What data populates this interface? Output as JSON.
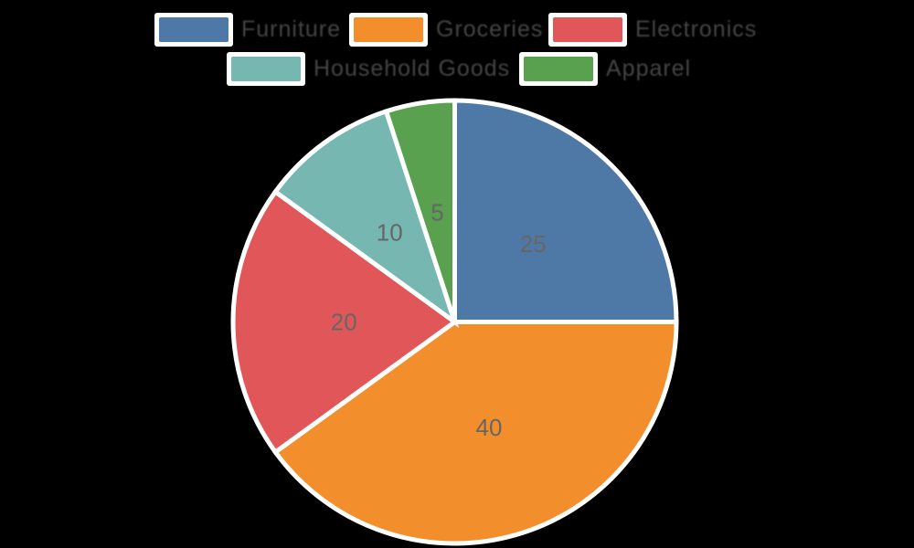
{
  "background_color": "#000000",
  "chart_data": {
    "type": "pie",
    "labels": [
      "Furniture",
      "Groceries",
      "Electronics",
      "Household Goods",
      "Apparel"
    ],
    "values": [
      25,
      40,
      20,
      10,
      5
    ],
    "value_labels": [
      "25",
      "40",
      "20",
      "10",
      "5"
    ],
    "colors": [
      "#4e79a7",
      "#f28e2b",
      "#e15759",
      "#76b7b2",
      "#59a14f"
    ],
    "start_angle": "top",
    "direction": "clockwise",
    "slice_border_color": "#ffffff",
    "value_label_color": "#666666",
    "legend_position": "top-center",
    "legend_rows": 2,
    "legend_text_color": "#454545",
    "legend_swatch_border_color": "#ffffff",
    "title": ""
  }
}
